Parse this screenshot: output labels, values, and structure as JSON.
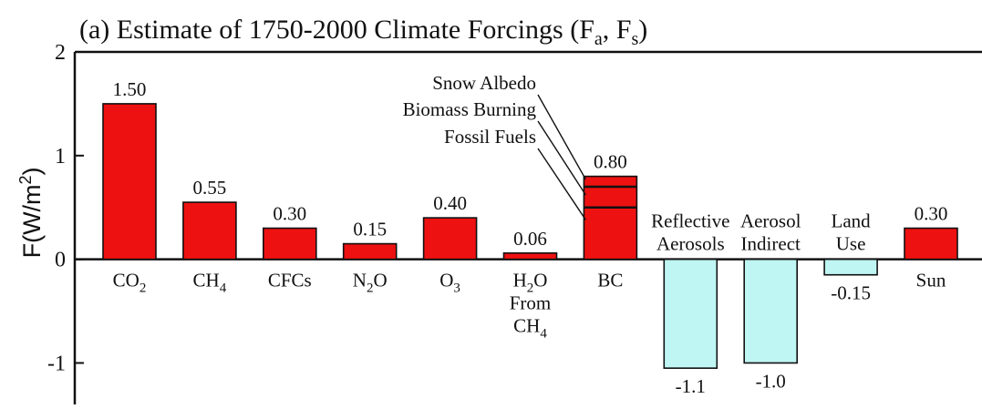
{
  "chart_data": {
    "type": "bar",
    "title": {
      "prefix": "(a) Estimate of 1750-2000 Climate Forcings (F",
      "sub1": "a",
      "mid": ", F",
      "sub2": "s",
      "suffix": ")"
    },
    "ylabel": {
      "prefix": "F(W/m",
      "sup": "2",
      "suffix": ")"
    },
    "ylim": [
      -1.4,
      2.0
    ],
    "yticks": [
      {
        "value": 2,
        "label": "2"
      },
      {
        "value": 1,
        "label": "1"
      },
      {
        "value": 0,
        "label": "0"
      },
      {
        "value": -1,
        "label": "-1"
      }
    ],
    "bars": [
      {
        "lines": [
          [
            {
              "t": "CO"
            },
            {
              "t": "2",
              "sub": true
            }
          ]
        ],
        "value": 1.5,
        "value_label": "1.50",
        "color": "#ee1111"
      },
      {
        "lines": [
          [
            {
              "t": "CH"
            },
            {
              "t": "4",
              "sub": true
            }
          ]
        ],
        "value": 0.55,
        "value_label": "0.55",
        "color": "#ee1111"
      },
      {
        "lines": [
          [
            {
              "t": "CFCs"
            }
          ]
        ],
        "value": 0.3,
        "value_label": "0.30",
        "color": "#ee1111"
      },
      {
        "lines": [
          [
            {
              "t": "N"
            },
            {
              "t": "2",
              "sub": true
            },
            {
              "t": "O"
            }
          ]
        ],
        "value": 0.15,
        "value_label": "0.15",
        "color": "#ee1111"
      },
      {
        "lines": [
          [
            {
              "t": "O"
            },
            {
              "t": "3",
              "sub": true
            }
          ]
        ],
        "value": 0.4,
        "value_label": "0.40",
        "color": "#ee1111"
      },
      {
        "lines": [
          [
            {
              "t": "H"
            },
            {
              "t": "2",
              "sub": true
            },
            {
              "t": "O"
            }
          ],
          [
            {
              "t": "From"
            }
          ],
          [
            {
              "t": "CH"
            },
            {
              "t": "4",
              "sub": true
            }
          ]
        ],
        "value": 0.06,
        "value_label": "0.06",
        "color": "#ee1111"
      },
      {
        "lines": [
          [
            {
              "t": "BC"
            }
          ]
        ],
        "value": 0.8,
        "value_label": "0.80",
        "color": "#ee1111",
        "segments": [
          0.5,
          0.7
        ]
      },
      {
        "lines": [
          [
            {
              "t": "Reflective"
            }
          ],
          [
            {
              "t": "Aerosols"
            }
          ]
        ],
        "value": -1.05,
        "value_label": "-1.1",
        "color": "#bff5f2"
      },
      {
        "lines": [
          [
            {
              "t": "Aerosol"
            }
          ],
          [
            {
              "t": "Indirect"
            }
          ]
        ],
        "value": -1.0,
        "value_label": "-1.0",
        "color": "#bff5f2"
      },
      {
        "lines": [
          [
            {
              "t": "Land"
            }
          ],
          [
            {
              "t": "Use"
            }
          ]
        ],
        "value": -0.15,
        "value_label": "-0.15",
        "color": "#bff5f2"
      },
      {
        "lines": [
          [
            {
              "t": "Sun"
            }
          ]
        ],
        "value": 0.3,
        "value_label": "0.30",
        "color": "#ee1111"
      }
    ],
    "annotations": [
      "Snow Albedo",
      "Biomass Burning",
      "Fossil Fuels"
    ],
    "grid": false,
    "colors": {
      "positive": "#ee1111",
      "negative": "#bff5f2",
      "outline": "#111111"
    }
  }
}
